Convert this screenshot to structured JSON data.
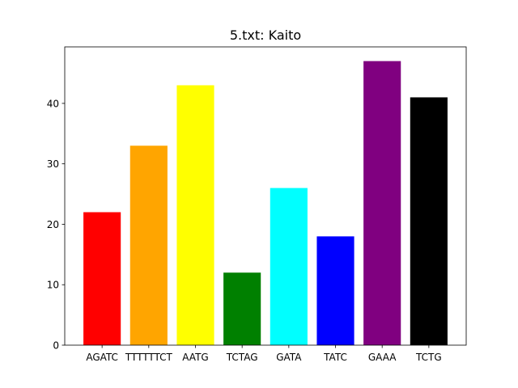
{
  "chart_data": {
    "type": "bar",
    "title": "5.txt: Kaito",
    "xlabel": "",
    "ylabel": "",
    "categories": [
      "AGATC",
      "TTTTTTCT",
      "AATG",
      "TCTAG",
      "GATA",
      "TATC",
      "GAAA",
      "TCTG"
    ],
    "values": [
      22,
      33,
      43,
      12,
      26,
      18,
      47,
      41
    ],
    "colors": [
      "#ff0000",
      "#ffa500",
      "#ffff00",
      "#008000",
      "#00ffff",
      "#0000ff",
      "#800080",
      "#000000"
    ],
    "ylim": [
      0,
      49.35
    ],
    "yticks": [
      0,
      10,
      20,
      30,
      40
    ],
    "grid": false,
    "legend": "none"
  }
}
